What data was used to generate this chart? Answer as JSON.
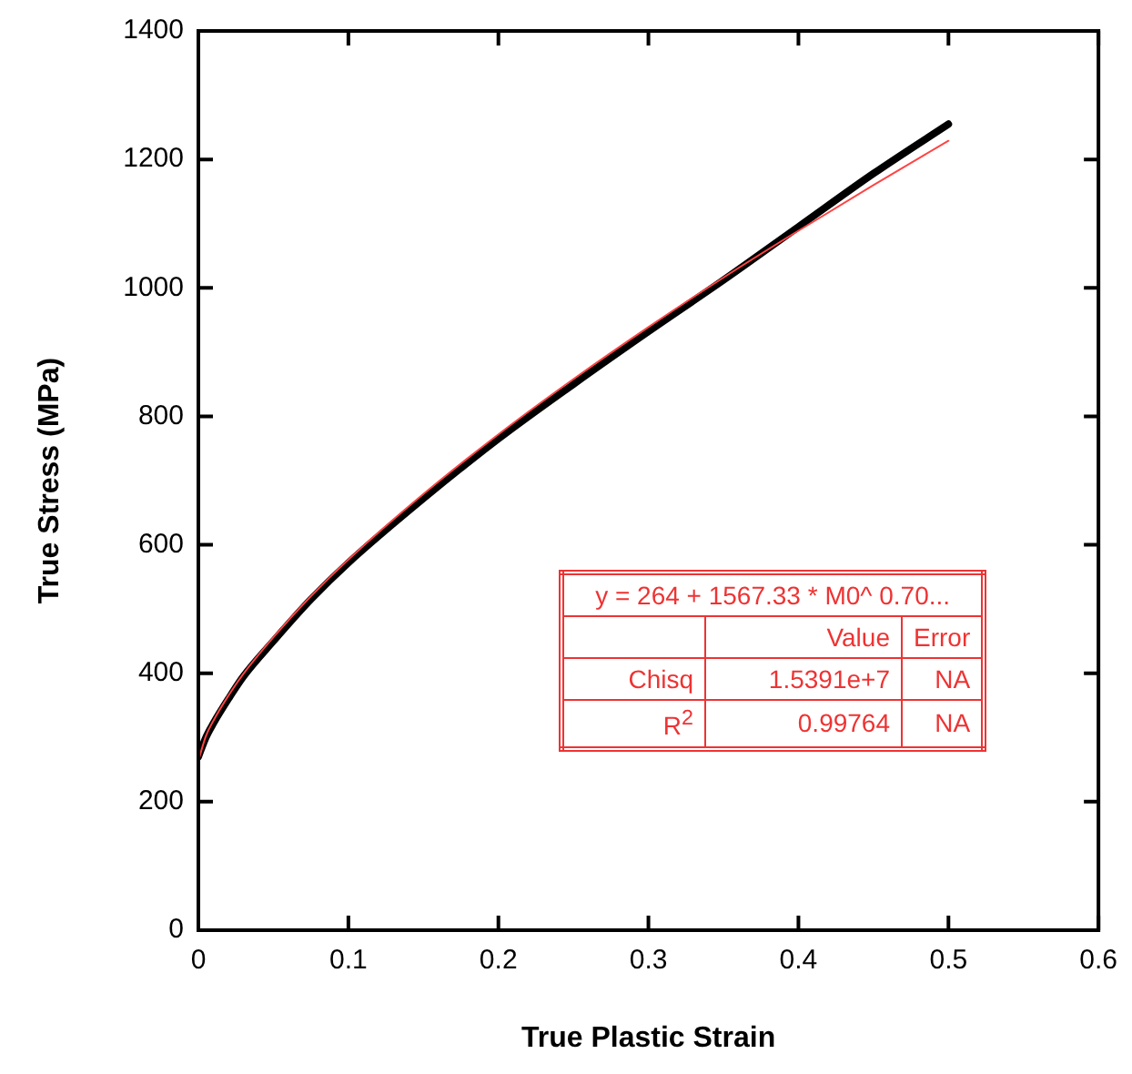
{
  "chart_data": {
    "type": "line",
    "xlabel": "True Plastic Strain",
    "ylabel": "True Stress (MPa)",
    "xlim": [
      0,
      0.6
    ],
    "xticks": [
      0,
      0.1,
      0.2,
      0.3,
      0.4,
      0.5,
      0.6
    ],
    "ylim": [
      0,
      1400
    ],
    "yticks": [
      0,
      200,
      400,
      600,
      800,
      1000,
      1200,
      1400
    ],
    "marker": "none",
    "series": [
      {
        "color": "#ff4444",
        "x": [
          0,
          0.005,
          0.01,
          0.02,
          0.03,
          0.05,
          0.075,
          0.1,
          0.15,
          0.2,
          0.25,
          0.3,
          0.35,
          0.4,
          0.45,
          0.5
        ],
        "values": [
          264,
          302,
          326,
          365,
          399,
          456,
          520,
          577,
          679,
          772,
          858,
          939,
          1016,
          1089,
          1160,
          1229
        ]
      },
      {
        "color": "#000000",
        "x": [
          0,
          0.005,
          0.01,
          0.02,
          0.03,
          0.05,
          0.075,
          0.1,
          0.15,
          0.2,
          0.25,
          0.3,
          0.35,
          0.4,
          0.45,
          0.5
        ],
        "values": [
          270,
          300,
          322,
          360,
          395,
          450,
          515,
          572,
          672,
          765,
          850,
          932,
          1012,
          1095,
          1178,
          1255
        ]
      }
    ],
    "annotations": [
      "y = 264 + 1567.33 * M0^ 0.70...",
      "Value",
      "Error",
      "Chisq",
      "1.5391e+7",
      "NA",
      "R$^{2}$",
      "0.99764",
      "NA"
    ]
  }
}
